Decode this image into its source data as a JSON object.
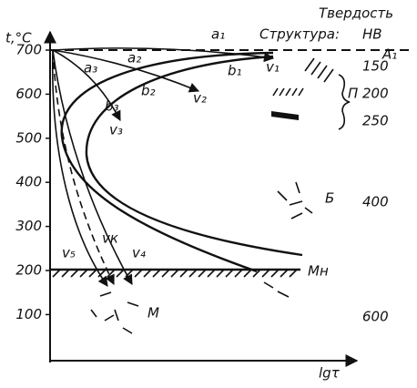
{
  "axis": {
    "y_label": "t,°C",
    "x_label": "lgτ",
    "ticks": [
      700,
      600,
      500,
      400,
      300,
      200,
      100
    ]
  },
  "header": {
    "hardness": "Твердость",
    "structure": "Структура:",
    "hb": "НВ"
  },
  "hardness_values": [
    "150",
    "200",
    "250",
    "400",
    "600"
  ],
  "labels": {
    "a1": "a₁",
    "a2": "a₂",
    "a3": "a₃",
    "b1": "b₁",
    "b2": "b₂",
    "b3": "b₃",
    "v1": "v₁",
    "v2": "v₂",
    "v3": "v₃",
    "vk": "vк",
    "v4": "v₄",
    "v5": "v₅",
    "A1": "A₁",
    "Mn": "Mн",
    "P": "П",
    "B": "Б",
    "M": "М"
  }
}
